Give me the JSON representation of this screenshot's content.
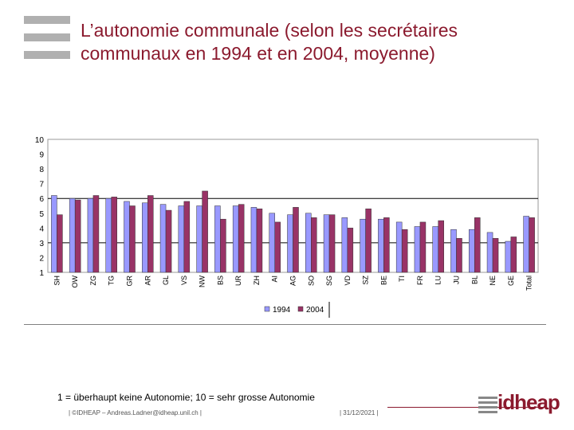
{
  "slide": {
    "title": "L’autonomie communale  (selon les secrétaires communaux en 1994 et en 2004, moyenne)",
    "footnote": "1 = überhaupt keine Autonomie; 10 = sehr grosse Autonomie",
    "footer_left": "| ©IDHEAP – Andreas.Ladner@idheap.unil.ch |",
    "footer_right": "| 31/12/2021 |",
    "logo_text": "idheap"
  },
  "colors": {
    "title": "#8b1a2e",
    "series_1994": "#9999ff",
    "series_2004": "#993366"
  },
  "chart_data": {
    "type": "bar",
    "title": "",
    "xlabel": "",
    "ylabel": "",
    "ylim": [
      1,
      10
    ],
    "yticks": [
      1,
      2,
      3,
      4,
      5,
      6,
      7,
      8,
      9,
      10
    ],
    "gridlines": [
      3,
      6
    ],
    "legend_position": "bottom",
    "categories": [
      "SH",
      "OW",
      "ZG",
      "TG",
      "GR",
      "AR",
      "GL",
      "VS",
      "NW",
      "BS",
      "UR",
      "ZH",
      "AI",
      "AG",
      "SO",
      "SG",
      "VD",
      "SZ",
      "BE",
      "TI",
      "FR",
      "LU",
      "JU",
      "BL",
      "NE",
      "GE",
      "Total"
    ],
    "series": [
      {
        "name": "1994",
        "values": [
          6.2,
          6.0,
          6.0,
          6.0,
          5.8,
          5.7,
          5.6,
          5.5,
          5.5,
          5.5,
          5.5,
          5.4,
          5.0,
          4.9,
          5.0,
          4.9,
          4.7,
          4.6,
          4.6,
          4.4,
          4.1,
          4.1,
          3.9,
          3.9,
          3.7,
          3.1,
          4.8
        ]
      },
      {
        "name": "2004",
        "values": [
          4.9,
          5.9,
          6.2,
          6.1,
          5.5,
          6.2,
          5.2,
          5.8,
          6.5,
          4.6,
          5.6,
          5.3,
          4.4,
          5.4,
          4.7,
          4.9,
          4.0,
          5.3,
          4.7,
          3.9,
          4.4,
          4.5,
          3.3,
          4.7,
          3.3,
          3.4,
          4.7
        ]
      }
    ]
  }
}
